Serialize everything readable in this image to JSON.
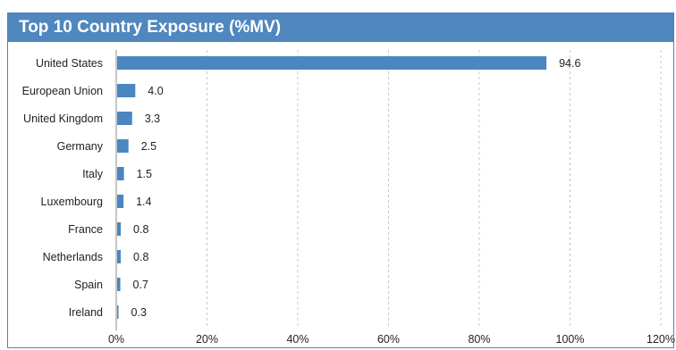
{
  "chart_data": {
    "type": "bar",
    "orientation": "horizontal",
    "title": "Top 10 Country Exposure (%MV)",
    "categories": [
      "United States",
      "European Union",
      "United Kingdom",
      "Germany",
      "Italy",
      "Luxembourg",
      "France",
      "Netherlands",
      "Spain",
      "Ireland"
    ],
    "values": [
      94.6,
      4.0,
      3.3,
      2.5,
      1.5,
      1.4,
      0.8,
      0.8,
      0.7,
      0.3
    ],
    "value_labels": [
      "94.6",
      "4.0",
      "3.3",
      "2.5",
      "1.5",
      "1.4",
      "0.8",
      "0.8",
      "0.7",
      "0.3"
    ],
    "xlim": [
      0,
      120
    ],
    "x_ticks": [
      "0%",
      "20%",
      "40%",
      "60%",
      "80%",
      "100%",
      "120%"
    ],
    "xlabel": "",
    "ylabel": "",
    "grid": "vertical dashed",
    "colors": {
      "bar": "#4a86c1",
      "title_bar": "#4f87be",
      "title_text": "#ffffff",
      "grid": "#c8c8c8",
      "axis": "#8c8c8c"
    }
  }
}
